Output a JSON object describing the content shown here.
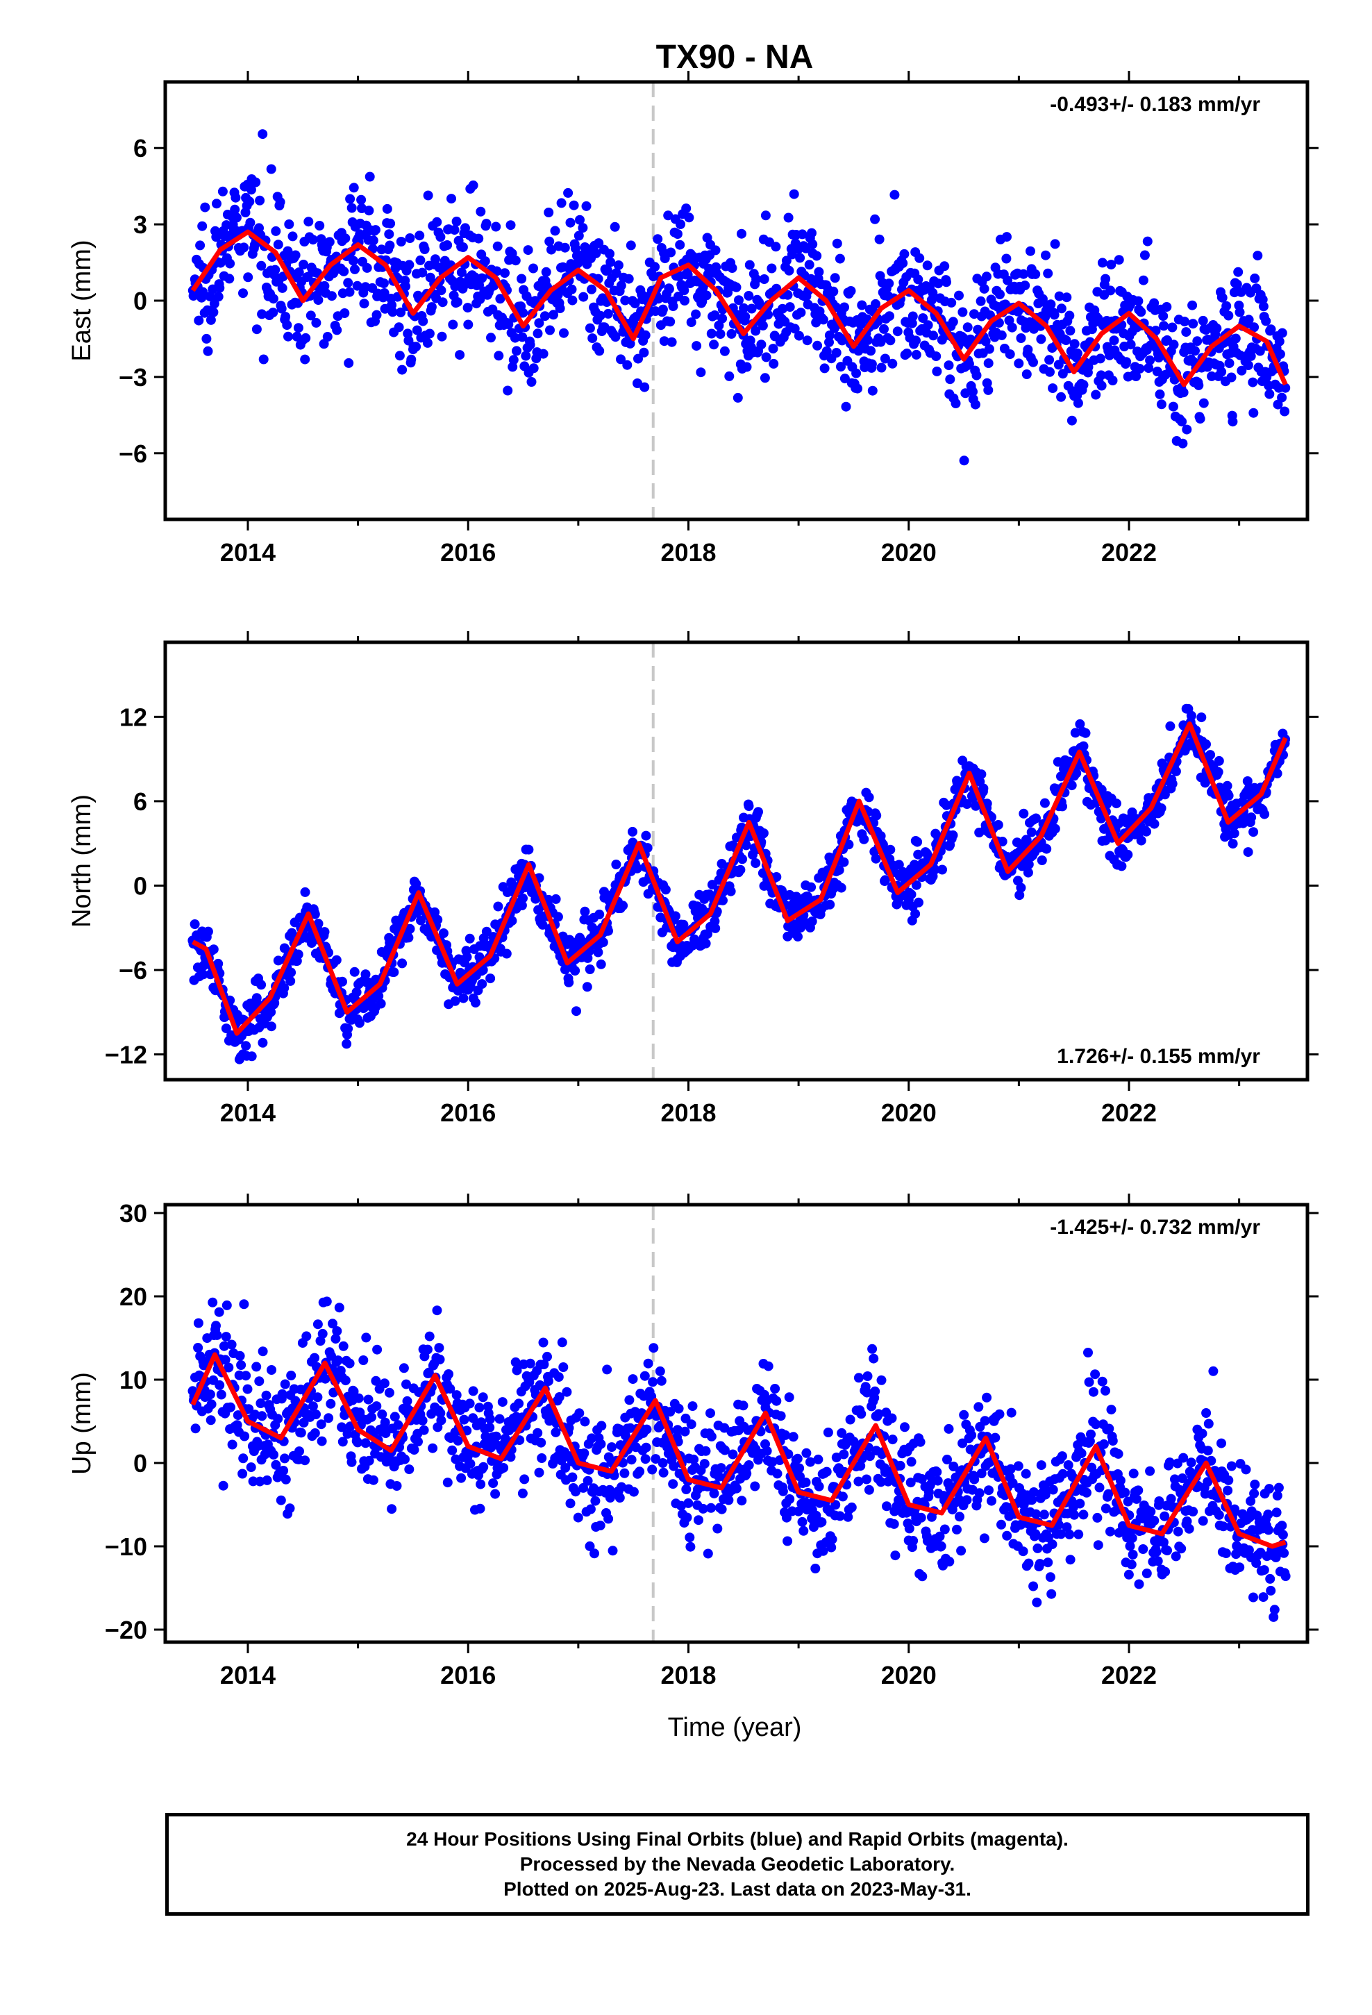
{
  "title": "TX90 - NA",
  "xlabel": "Time (year)",
  "footer": {
    "line1": "24 Hour Positions Using Final Orbits (blue) and Rapid Orbits (magenta).",
    "line2": "Processed by the Nevada Geodetic Laboratory.",
    "line3": "Plotted on 2025-Aug-23. Last data on 2023-May-31."
  },
  "colors": {
    "data": "#0000ff",
    "model": "#ff0000",
    "marker": "#c8c8c8",
    "axis": "#000000"
  },
  "chart_data": [
    {
      "type": "scatter",
      "ylabel": "East (mm)",
      "rate_text": "-0.493+/- 0.183 mm/yr",
      "rate_position": "top-right",
      "xlim": [
        2013.25,
        2023.62
      ],
      "ylim": [
        -8.6,
        8.6
      ],
      "xticks": [
        2014,
        2016,
        2018,
        2020,
        2022
      ],
      "yticks": [
        -6,
        -3,
        0,
        3,
        6
      ],
      "equipment_change": 2017.68,
      "model_line": {
        "x": [
          2013.5,
          2013.75,
          2014.0,
          2014.25,
          2014.5,
          2014.75,
          2015.0,
          2015.25,
          2015.5,
          2015.75,
          2016.0,
          2016.25,
          2016.5,
          2016.75,
          2017.0,
          2017.25,
          2017.5,
          2017.68,
          2017.75,
          2018.0,
          2018.25,
          2018.5,
          2018.75,
          2019.0,
          2019.25,
          2019.5,
          2019.75,
          2020.0,
          2020.25,
          2020.5,
          2020.75,
          2021.0,
          2021.25,
          2021.5,
          2021.75,
          2022.0,
          2022.25,
          2022.5,
          2022.75,
          2023.0,
          2023.25,
          2023.42
        ],
        "y": [
          0.4,
          2.0,
          2.7,
          1.9,
          0.0,
          1.4,
          2.2,
          1.4,
          -0.5,
          0.9,
          1.7,
          0.9,
          -1.0,
          0.4,
          1.2,
          0.4,
          -1.5,
          0.2,
          0.9,
          1.4,
          0.4,
          -1.3,
          0.0,
          0.9,
          0.0,
          -1.8,
          -0.3,
          0.4,
          -0.5,
          -2.3,
          -0.8,
          -0.1,
          -1.0,
          -2.8,
          -1.3,
          -0.5,
          -1.5,
          -3.3,
          -1.8,
          -1.0,
          -1.6,
          -3.3
        ]
      },
      "scatter": {
        "amp": 2.0,
        "phase": 0.2,
        "trend": -0.493,
        "offset": 0.6,
        "noise": 1.3,
        "n": 1500
      }
    },
    {
      "type": "scatter",
      "ylabel": "North (mm)",
      "rate_text": "1.726+/- 0.155 mm/yr",
      "rate_position": "bottom-right",
      "xlim": [
        2013.25,
        2023.62
      ],
      "ylim": [
        -13.8,
        17.3
      ],
      "xticks": [
        2014,
        2016,
        2018,
        2020,
        2022
      ],
      "yticks": [
        -12,
        -6,
        0,
        6,
        12
      ],
      "equipment_change": 2017.68,
      "model_line": {
        "x": [
          2013.5,
          2013.62,
          2013.9,
          2014.2,
          2014.55,
          2014.9,
          2015.2,
          2015.55,
          2015.9,
          2016.2,
          2016.55,
          2016.9,
          2017.2,
          2017.55,
          2017.9,
          2018.2,
          2018.55,
          2018.9,
          2019.2,
          2019.55,
          2019.9,
          2020.2,
          2020.55,
          2020.9,
          2021.2,
          2021.55,
          2021.9,
          2022.2,
          2022.55,
          2022.9,
          2023.2,
          2023.42
        ],
        "y": [
          -4.0,
          -4.5,
          -10.5,
          -8.0,
          -2.0,
          -9.0,
          -7.0,
          -0.5,
          -7.0,
          -5.0,
          1.5,
          -5.5,
          -3.5,
          3.0,
          -4.0,
          -2.0,
          4.5,
          -2.5,
          -1.0,
          6.0,
          -0.5,
          1.5,
          8.0,
          1.0,
          3.5,
          9.5,
          3.0,
          5.5,
          11.5,
          4.5,
          6.5,
          10.5
        ]
      },
      "scatter": {
        "amp": 4.0,
        "phase": 0.55,
        "trend": 1.726,
        "offset": -5.0,
        "noise": 1.0,
        "n": 1500
      }
    },
    {
      "type": "scatter",
      "ylabel": "Up (mm)",
      "rate_text": "-1.425+/- 0.732 mm/yr",
      "rate_position": "top-right",
      "xlim": [
        2013.25,
        2023.62
      ],
      "ylim": [
        -21.5,
        31.0
      ],
      "xticks": [
        2014,
        2016,
        2018,
        2020,
        2022
      ],
      "yticks": [
        -20,
        -10,
        0,
        10,
        20,
        30
      ],
      "equipment_change": 2017.68,
      "model_line": {
        "x": [
          2013.5,
          2013.7,
          2014.0,
          2014.3,
          2014.7,
          2015.0,
          2015.3,
          2015.7,
          2016.0,
          2016.3,
          2016.7,
          2017.0,
          2017.3,
          2017.7,
          2018.0,
          2018.3,
          2018.7,
          2019.0,
          2019.3,
          2019.7,
          2020.0,
          2020.3,
          2020.7,
          2021.0,
          2021.3,
          2021.7,
          2022.0,
          2022.3,
          2022.7,
          2023.0,
          2023.3,
          2023.42
        ],
        "y": [
          7.0,
          13.0,
          5.0,
          3.0,
          12.0,
          4.0,
          1.5,
          10.5,
          2.0,
          0.5,
          9.0,
          0.0,
          -1.0,
          7.5,
          -2.0,
          -3.0,
          6.0,
          -3.5,
          -4.5,
          4.5,
          -5.0,
          -6.0,
          3.0,
          -6.5,
          -7.5,
          2.0,
          -7.5,
          -8.5,
          0.0,
          -8.5,
          -10.0,
          -9.5
        ]
      },
      "scatter": {
        "amp": 6.0,
        "phase": 0.7,
        "trend": -1.425,
        "offset": 3.0,
        "noise": 3.8,
        "n": 1500
      }
    }
  ]
}
